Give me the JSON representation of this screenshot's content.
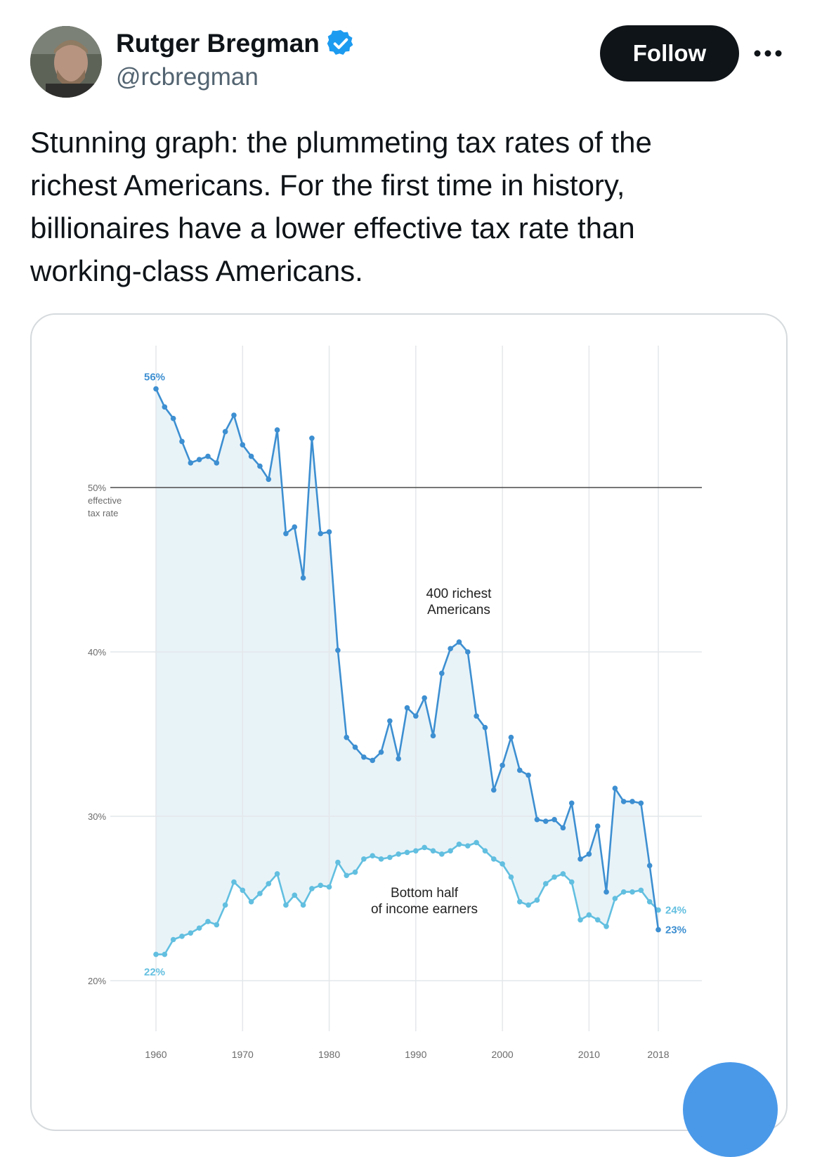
{
  "author": {
    "name": "Rutger Bregman",
    "handle": "@rcbregman",
    "verified": true,
    "verified_icon": "verified-badge-icon"
  },
  "actions": {
    "follow_label": "Follow",
    "more_icon": "more-horizontal-icon"
  },
  "tweet": {
    "text": "Stunning graph: the plummeting tax rates of the\nrichest Americans. For the first time in history,\nbillionaires have a lower effective tax rate than\nworking-class Americans."
  },
  "colors": {
    "top_series": "#3d8fd1",
    "bottom_series": "#62bfe0",
    "fill": "#e8f3f8",
    "follow_bg": "#0f1419",
    "verified": "#1d9bf0"
  },
  "chart_data": {
    "type": "line",
    "x_ticks": [
      "1960",
      "1970",
      "1980",
      "1990",
      "2000",
      "2010",
      "2018"
    ],
    "y_ticks": [
      "20%",
      "30%",
      "40%",
      "50%"
    ],
    "y_unit_note": [
      "effective",
      "tax rate"
    ],
    "ylim": [
      20,
      58
    ],
    "xlim": [
      1960,
      2018
    ],
    "reference_line": 50,
    "grid": true,
    "shaded_between_series": true,
    "series": [
      {
        "name": "400 richest Americans",
        "label_lines": [
          "400 richest",
          "Americans"
        ],
        "start_label": "56%",
        "end_label": "23%",
        "x": [
          1960,
          1961,
          1962,
          1963,
          1964,
          1965,
          1966,
          1967,
          1968,
          1969,
          1970,
          1971,
          1972,
          1973,
          1974,
          1975,
          1976,
          1977,
          1978,
          1979,
          1980,
          1981,
          1982,
          1983,
          1984,
          1985,
          1986,
          1987,
          1988,
          1989,
          1990,
          1991,
          1992,
          1993,
          1994,
          1995,
          1996,
          1997,
          1998,
          1999,
          2000,
          2001,
          2002,
          2003,
          2004,
          2005,
          2006,
          2007,
          2008,
          2009,
          2010,
          2011,
          2012,
          2013,
          2014,
          2015,
          2016,
          2017,
          2018
        ],
        "values": [
          56,
          54.9,
          54.2,
          52.8,
          51.5,
          51.7,
          51.9,
          51.5,
          53.4,
          54.4,
          52.6,
          51.9,
          51.3,
          50.5,
          53.5,
          47.2,
          47.6,
          44.5,
          53,
          47.2,
          47.3,
          40.1,
          34.8,
          34.2,
          33.6,
          33.4,
          33.9,
          35.8,
          33.5,
          36.6,
          36.1,
          37.2,
          34.9,
          38.7,
          40.2,
          40.6,
          40,
          36.1,
          35.4,
          31.6,
          33.1,
          34.8,
          32.8,
          32.5,
          29.8,
          29.7,
          29.8,
          29.3,
          30.8,
          27.4,
          27.7,
          29.4,
          25.4,
          31.7,
          30.9,
          30.9,
          30.8,
          27,
          23.1
        ]
      },
      {
        "name": "Bottom half of income earners",
        "label_lines": [
          "Bottom half",
          "of income earners"
        ],
        "start_label": "22%",
        "end_label": "24%",
        "x": [
          1960,
          1961,
          1962,
          1963,
          1964,
          1965,
          1966,
          1967,
          1968,
          1969,
          1970,
          1971,
          1972,
          1973,
          1974,
          1975,
          1976,
          1977,
          1978,
          1979,
          1980,
          1981,
          1982,
          1983,
          1984,
          1985,
          1986,
          1987,
          1988,
          1989,
          1990,
          1991,
          1992,
          1993,
          1994,
          1995,
          1996,
          1997,
          1998,
          1999,
          2000,
          2001,
          2002,
          2003,
          2004,
          2005,
          2006,
          2007,
          2008,
          2009,
          2010,
          2011,
          2012,
          2013,
          2014,
          2015,
          2016,
          2017,
          2018
        ],
        "values": [
          21.6,
          21.6,
          22.5,
          22.7,
          22.9,
          23.2,
          23.6,
          23.4,
          24.6,
          26,
          25.5,
          24.8,
          25.3,
          25.9,
          26.5,
          24.6,
          25.2,
          24.6,
          25.6,
          25.8,
          25.7,
          27.2,
          26.4,
          26.6,
          27.4,
          27.6,
          27.4,
          27.5,
          27.7,
          27.8,
          27.9,
          28.1,
          27.9,
          27.7,
          27.9,
          28.3,
          28.2,
          28.4,
          27.9,
          27.4,
          27.1,
          26.3,
          24.8,
          24.6,
          24.9,
          25.9,
          26.3,
          26.5,
          26,
          23.7,
          24,
          23.7,
          23.3,
          25,
          25.4,
          25.4,
          25.5,
          24.8,
          24.3
        ]
      }
    ]
  }
}
